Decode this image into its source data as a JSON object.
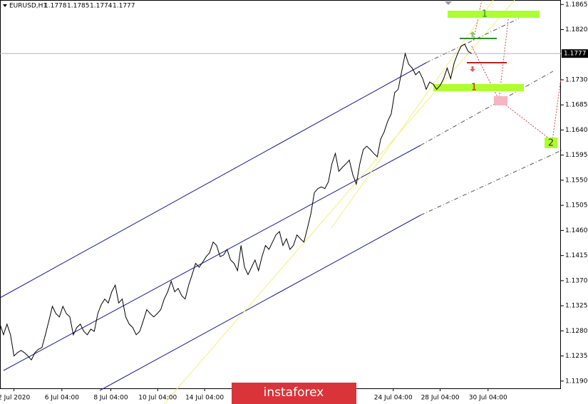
{
  "chart_data": {
    "type": "line",
    "title": "EURUSD,H1",
    "ohlc": [
      1.1778,
      1.1785,
      1.1774,
      1.1777
    ],
    "current_price": 1.1777,
    "color": "#000000",
    "x": [
      0,
      3.5,
      7,
      10.5,
      14,
      17.5,
      21,
      24.5,
      28,
      31.5,
      35,
      38.5,
      42,
      45.5,
      49,
      52.5,
      56,
      59.5,
      63,
      66.5,
      70,
      73.5,
      77,
      80.5,
      84,
      87.5,
      91,
      94.5,
      98,
      101.5,
      105,
      108.5,
      112,
      115.5,
      119,
      122.5,
      126,
      129.5,
      133,
      136.5,
      140,
      143.5,
      147,
      150.5,
      154,
      157.5,
      161,
      164.5,
      168,
      171.5,
      175,
      178.5,
      182,
      185.5,
      189,
      192.5,
      196,
      199.5,
      203,
      206.5,
      210,
      213.5,
      217,
      220.5,
      224,
      227.5,
      231,
      234.5,
      238,
      241.5,
      245,
      248.5,
      252,
      255.5,
      259,
      262.5,
      266,
      269.5,
      273,
      276.5,
      280,
      283.5,
      287,
      290.5,
      294,
      297.5,
      301,
      304.5,
      308,
      311.5,
      315,
      318.5,
      322,
      325.5,
      329,
      332.5,
      336,
      339.5,
      343,
      346.5,
      350,
      353.5,
      357,
      360.5,
      364,
      367.5,
      371,
      374.5,
      378,
      381.5,
      385,
      388.5,
      392,
      395.5,
      399,
      402.5,
      406,
      409.5,
      413,
      416.5,
      420,
      423.5,
      427,
      430.5,
      434,
      437.5,
      441,
      444.5,
      448,
      451.5,
      455,
      458.5,
      462,
      465.5,
      469,
      472.5
    ],
    "values": [
      1.1292,
      1.1273,
      1.1292,
      1.1273,
      1.1235,
      1.1241,
      1.1245,
      1.1241,
      1.1235,
      1.1228,
      1.1241,
      1.1247,
      1.125,
      1.1273,
      1.1298,
      1.1324,
      1.1311,
      1.1305,
      1.1324,
      1.1311,
      1.1305,
      1.1273,
      1.1286,
      1.1292,
      1.1279,
      1.1273,
      1.1283,
      1.1279,
      1.1311,
      1.1327,
      1.1337,
      1.133,
      1.135,
      1.1362,
      1.133,
      1.1337,
      1.1305,
      1.1292,
      1.1286,
      1.1273,
      1.1279,
      1.1298,
      1.1318,
      1.1311,
      1.1305,
      1.1311,
      1.1318,
      1.1337,
      1.135,
      1.1369,
      1.135,
      1.1356,
      1.1343,
      1.1337,
      1.1362,
      1.1381,
      1.1401,
      1.1394,
      1.1403,
      1.1413,
      1.142,
      1.1439,
      1.1433,
      1.1413,
      1.1416,
      1.1426,
      1.1407,
      1.1401,
      1.1388,
      1.1433,
      1.1394,
      1.1381,
      1.1394,
      1.1407,
      1.1388,
      1.1413,
      1.1433,
      1.1426,
      1.1439,
      1.1452,
      1.1458,
      1.1433,
      1.1445,
      1.1426,
      1.1433,
      1.1452,
      1.1445,
      1.1439,
      1.1464,
      1.149,
      1.1528,
      1.1535,
      1.1538,
      1.1535,
      1.1547,
      1.1579,
      1.1598,
      1.1566,
      1.1573,
      1.1579,
      1.1586,
      1.156,
      1.1543,
      1.1579,
      1.1605,
      1.1611,
      1.1605,
      1.1598,
      1.1592,
      1.1624,
      1.1637,
      1.1656,
      1.1669,
      1.1707,
      1.1713,
      1.1745,
      1.1777,
      1.1758,
      1.1751,
      1.1739,
      1.1745,
      1.1732,
      1.1713,
      1.1726,
      1.1722,
      1.1713,
      1.172,
      1.1732,
      1.1751,
      1.1732,
      1.176,
      1.1777,
      1.179,
      1.1794,
      1.1781,
      1.1777
    ],
    "xlim": [
      0,
      562
    ],
    "xticks": [
      {
        "value": 14,
        "label": "2 Jul 2020"
      },
      {
        "value": 62,
        "label": "6 Jul 04:00"
      },
      {
        "value": 111,
        "label": "8 Jul 04:00"
      },
      {
        "value": 158,
        "label": "10 Jul 04:00"
      },
      {
        "value": 205,
        "label": "14 Jul 04:00"
      },
      {
        "value": 394,
        "label": "24 Jul 04:00"
      },
      {
        "value": 441,
        "label": "28 Jul 04:00"
      },
      {
        "value": 489,
        "label": "30 Jul 04:00"
      }
    ],
    "ylim": [
      1.1177,
      1.1873
    ],
    "yticks": [
      1.1865,
      {
        "value": 1.182,
        "label": "1.1820"
      },
      {
        "value": 1.173,
        "label": "1.1730"
      },
      1.1685,
      {
        "value": 1.164,
        "label": "1.1640"
      },
      1.1595,
      {
        "value": 1.155,
        "label": "1.1550"
      },
      1.1505,
      {
        "value": 1.146,
        "label": "1.1460"
      },
      1.1415,
      {
        "value": 1.137,
        "label": "1.1370"
      },
      1.1325,
      {
        "value": 1.128,
        "label": "1.1280"
      },
      1.1235,
      {
        "value": 1.119,
        "label": "1.1190"
      }
    ],
    "annotations": [
      "1",
      "1",
      "2"
    ],
    "watermark": "instaforex"
  }
}
